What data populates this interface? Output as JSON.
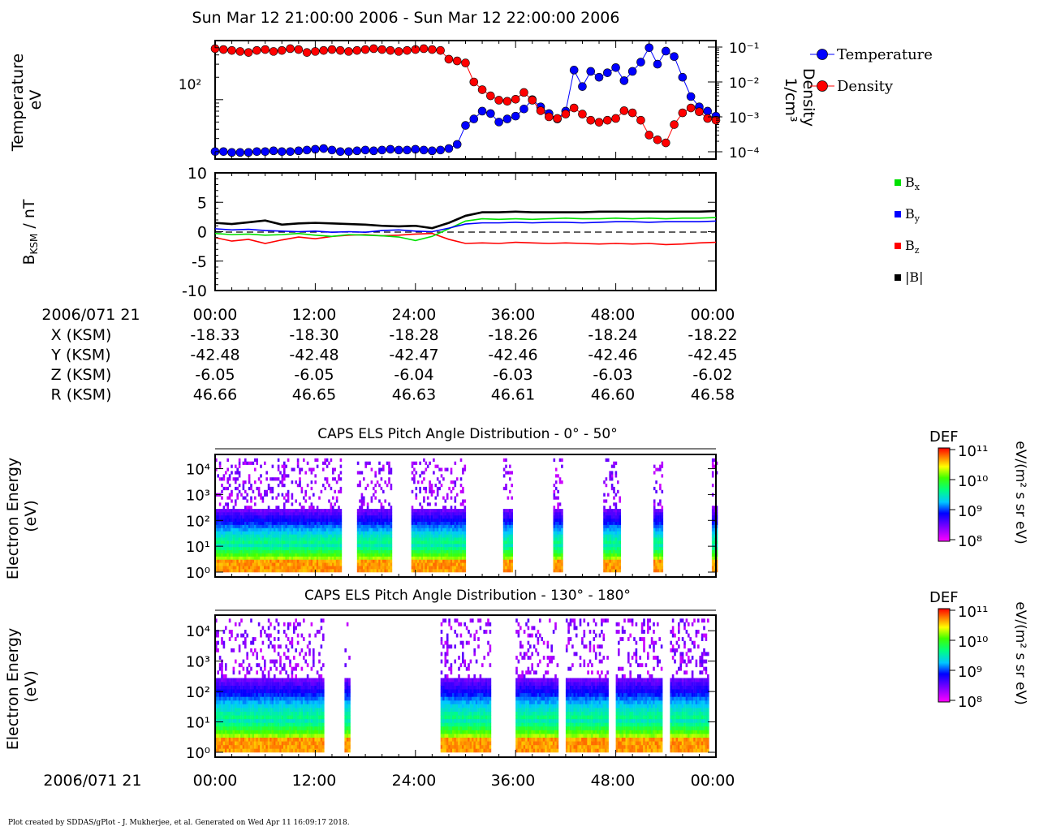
{
  "header": {
    "title": "Sun Mar 12 21:00:00 2006 - Sun Mar 12 22:00:00 2006"
  },
  "footer": {
    "credit": "Plot created by SDDAS/gPlot - J. Mukherjee, et al.  Generated on Wed Apr 11 16:09:17 2018."
  },
  "colors": {
    "temperature": "#0000ff",
    "density": "#ff0000",
    "bx": "#00e000",
    "by": "#0000ff",
    "bz": "#ff0000",
    "bmag": "#000000"
  },
  "ephemeris": {
    "date_label": "2006/071 21",
    "time_ticks": [
      "00:00",
      "12:00",
      "24:00",
      "36:00",
      "48:00",
      "00:00"
    ],
    "rows": [
      {
        "label": "X (KSM)",
        "values": [
          "-18.33",
          "-18.30",
          "-18.28",
          "-18.26",
          "-18.24",
          "-18.22"
        ]
      },
      {
        "label": "Y (KSM)",
        "values": [
          "-42.48",
          "-42.48",
          "-42.47",
          "-42.46",
          "-42.46",
          "-42.45"
        ]
      },
      {
        "label": "Z (KSM)",
        "values": [
          "-6.05",
          "-6.05",
          "-6.04",
          "-6.03",
          "-6.03",
          "-6.02"
        ]
      },
      {
        "label": "R (KSM)",
        "values": [
          "46.66",
          "46.65",
          "46.63",
          "46.61",
          "46.60",
          "46.58"
        ]
      }
    ]
  },
  "bottom_axis": {
    "date_label": "2006/071 21",
    "time_ticks": [
      "00:00",
      "12:00",
      "24:00",
      "36:00",
      "48:00",
      "00:00"
    ]
  },
  "chart_data": [
    {
      "type": "scatter",
      "panel": "moments",
      "ylabel": "Temperature\neV",
      "ylabel_right": "Density\n1/cm³",
      "y_left_ticks": [
        "10²"
      ],
      "y_right_ticks": [
        "10⁻¹",
        "10⁻²",
        "10⁻³",
        "10⁻⁴"
      ],
      "y_right_range": [
        0.0001,
        0.1
      ],
      "y_right_scale": "log",
      "x_range_min": [
        0,
        60
      ],
      "legend": [
        "Temperature",
        "Density"
      ],
      "legend_position": "right",
      "series": [
        {
          "name": "Temperature",
          "color": "#0000ff",
          "x_min": [
            0,
            1,
            2,
            3,
            4,
            5,
            6,
            7,
            8,
            9,
            10,
            11,
            12,
            13,
            14,
            15,
            16,
            17,
            18,
            19,
            20,
            21,
            22,
            23,
            24,
            25,
            26,
            27,
            28,
            29,
            30,
            31,
            32,
            33,
            34,
            35,
            36,
            37,
            38,
            39,
            40,
            41,
            42,
            43,
            44,
            45,
            46,
            47,
            48,
            49,
            50,
            51,
            52,
            53,
            54,
            55,
            56,
            57,
            58,
            59,
            60
          ],
          "values": [
            20,
            20,
            19.5,
            19.5,
            19.5,
            20,
            20,
            20.5,
            20,
            20,
            20.5,
            21,
            21.5,
            22,
            21,
            20,
            20,
            20.5,
            21,
            20.5,
            21,
            21.5,
            21,
            21,
            21.5,
            21,
            20.5,
            21,
            22,
            25,
            45,
            55,
            70,
            65,
            50,
            55,
            60,
            75,
            100,
            80,
            65,
            55,
            70,
            250,
            150,
            240,
            200,
            230,
            270,
            180,
            240,
            320,
            500,
            300,
            450,
            380,
            200,
            110,
            80,
            70,
            60
          ]
        },
        {
          "name": "Density",
          "color": "#ff0000",
          "x_min": [
            0,
            1,
            2,
            3,
            4,
            5,
            6,
            7,
            8,
            9,
            10,
            11,
            12,
            13,
            14,
            15,
            16,
            17,
            18,
            19,
            20,
            21,
            22,
            23,
            24,
            25,
            26,
            27,
            28,
            29,
            30,
            31,
            32,
            33,
            34,
            35,
            36,
            37,
            38,
            39,
            40,
            41,
            42,
            43,
            44,
            45,
            46,
            47,
            48,
            49,
            50,
            51,
            52,
            53,
            54,
            55,
            56,
            57,
            58,
            59,
            60
          ],
          "values": [
            0.09,
            0.085,
            0.08,
            0.075,
            0.07,
            0.08,
            0.085,
            0.075,
            0.08,
            0.09,
            0.085,
            0.07,
            0.075,
            0.08,
            0.085,
            0.08,
            0.075,
            0.08,
            0.085,
            0.09,
            0.085,
            0.08,
            0.075,
            0.08,
            0.085,
            0.09,
            0.085,
            0.08,
            0.045,
            0.04,
            0.035,
            0.01,
            0.006,
            0.004,
            0.003,
            0.0028,
            0.0032,
            0.005,
            0.003,
            0.0015,
            0.001,
            0.0009,
            0.0012,
            0.0018,
            0.0012,
            0.0008,
            0.0007,
            0.0008,
            0.0009,
            0.0015,
            0.0013,
            0.0008,
            0.0003,
            0.00022,
            0.00018,
            0.0006,
            0.0013,
            0.0018,
            0.0014,
            0.0009,
            0.0008
          ]
        }
      ]
    },
    {
      "type": "line",
      "panel": "magnetometer",
      "ylabel": "B_KSM / nT",
      "ylim": [
        -10,
        10
      ],
      "yticks": [
        "10",
        "5",
        "0",
        "-5",
        "-10"
      ],
      "x_range_min": [
        0,
        60
      ],
      "legend": [
        "Bx",
        "By",
        "Bz",
        "|B|"
      ],
      "legend_position": "right",
      "series": [
        {
          "name": "Bx",
          "color": "#00e000",
          "x_min": [
            0,
            2,
            4,
            6,
            8,
            10,
            12,
            14,
            16,
            18,
            20,
            22,
            24,
            26,
            28,
            30,
            32,
            34,
            36,
            38,
            40,
            42,
            44,
            46,
            48,
            50,
            52,
            54,
            56,
            58,
            60
          ],
          "values": [
            -0.3,
            -0.5,
            -0.4,
            -0.6,
            -0.5,
            -0.3,
            -0.6,
            -0.8,
            -0.5,
            -0.6,
            -0.7,
            -0.9,
            -1.5,
            -0.8,
            0.5,
            1.8,
            2.2,
            2.1,
            2.2,
            2.1,
            2.2,
            2.3,
            2.2,
            2.2,
            2.3,
            2.2,
            2.3,
            2.2,
            2.3,
            2.3,
            2.4
          ]
        },
        {
          "name": "By",
          "color": "#0000ff",
          "x_min": [
            0,
            2,
            4,
            6,
            8,
            10,
            12,
            14,
            16,
            18,
            20,
            22,
            24,
            26,
            28,
            30,
            32,
            34,
            36,
            38,
            40,
            42,
            44,
            46,
            48,
            50,
            52,
            54,
            56,
            58,
            60
          ],
          "values": [
            0.5,
            0.3,
            0.4,
            0.2,
            0.1,
            0.0,
            0.1,
            -0.1,
            0.0,
            -0.1,
            0.2,
            0.3,
            0.1,
            0.0,
            0.6,
            1.3,
            1.5,
            1.5,
            1.6,
            1.5,
            1.6,
            1.6,
            1.5,
            1.6,
            1.7,
            1.7,
            1.6,
            1.7,
            1.7,
            1.7,
            1.8
          ]
        },
        {
          "name": "Bz",
          "color": "#ff0000",
          "x_min": [
            0,
            2,
            4,
            6,
            8,
            10,
            12,
            14,
            16,
            18,
            20,
            22,
            24,
            26,
            28,
            30,
            32,
            34,
            36,
            38,
            40,
            42,
            44,
            46,
            48,
            50,
            52,
            54,
            56,
            58,
            60
          ],
          "values": [
            -1.0,
            -1.6,
            -1.3,
            -2.0,
            -1.4,
            -0.9,
            -1.2,
            -0.8,
            -0.6,
            -0.5,
            -0.7,
            -0.6,
            -0.4,
            -0.3,
            -1.3,
            -2.0,
            -1.9,
            -2.0,
            -1.8,
            -1.9,
            -2.0,
            -1.9,
            -2.0,
            -2.1,
            -2.0,
            -2.1,
            -2.0,
            -2.2,
            -2.1,
            -1.9,
            -1.8
          ]
        },
        {
          "name": "|B|",
          "color": "#000000",
          "x_min": [
            0,
            2,
            4,
            6,
            8,
            10,
            12,
            14,
            16,
            18,
            20,
            22,
            24,
            26,
            28,
            30,
            32,
            34,
            36,
            38,
            40,
            42,
            44,
            46,
            48,
            50,
            52,
            54,
            56,
            58,
            60
          ],
          "values": [
            1.5,
            1.3,
            1.6,
            1.9,
            1.2,
            1.4,
            1.5,
            1.4,
            1.3,
            1.2,
            1.0,
            0.9,
            1.0,
            0.6,
            1.5,
            2.7,
            3.3,
            3.3,
            3.4,
            3.3,
            3.3,
            3.3,
            3.3,
            3.4,
            3.4,
            3.4,
            3.4,
            3.4,
            3.4,
            3.4,
            3.5
          ]
        }
      ]
    },
    {
      "type": "heatmap",
      "panel": "pad-0-50",
      "title": "CAPS ELS Pitch Angle Distribution - 0° - 50°",
      "ylabel": "Electron Energy\n(eV)",
      "y_ticks": [
        "10⁴",
        "10³",
        "10²",
        "10¹",
        "10⁰"
      ],
      "y_scale": "log",
      "colorbar": {
        "label": "DEF",
        "units": "eV/(m² s sr eV)",
        "ticks": [
          "10¹¹",
          "10¹⁰",
          "10⁹",
          "10⁸"
        ],
        "range": [
          100000000.0,
          100000000000.0
        ]
      },
      "data_windows_min": [
        [
          0,
          15
        ],
        [
          17,
          21
        ],
        [
          23.5,
          30
        ],
        [
          34.5,
          35.5
        ],
        [
          40.5,
          41.5
        ],
        [
          46.5,
          48.5
        ],
        [
          52.5,
          53.5
        ],
        [
          59.5,
          60
        ]
      ]
    },
    {
      "type": "heatmap",
      "panel": "pad-130-180",
      "title": "CAPS ELS Pitch Angle Distribution - 130° - 180°",
      "ylabel": "Electron Energy\n(eV)",
      "y_ticks": [
        "10⁴",
        "10³",
        "10²",
        "10¹",
        "10⁰"
      ],
      "y_scale": "log",
      "colorbar": {
        "label": "DEF",
        "units": "eV/(m² s sr eV)",
        "ticks": [
          "10¹¹",
          "10¹⁰",
          "10⁹",
          "10⁸"
        ],
        "range": [
          100000000.0,
          100000000000.0
        ]
      },
      "data_windows_min": [
        [
          0,
          13
        ],
        [
          15.5,
          16
        ],
        [
          27,
          33
        ],
        [
          36,
          41
        ],
        [
          42,
          47
        ],
        [
          48,
          53.5
        ],
        [
          54.5,
          59
        ]
      ]
    }
  ]
}
